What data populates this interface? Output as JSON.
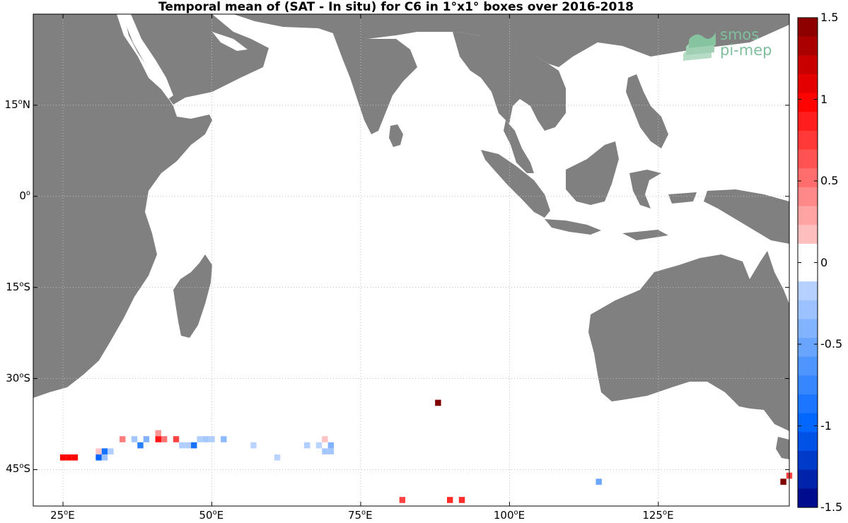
{
  "title": "Temporal mean of (SAT - In situ) for C6 in 1°x1° boxes over 2016-2018",
  "logo": {
    "line1": "smos",
    "line2": "pi-mep"
  },
  "axes": {
    "lat_ticks": [
      {
        "label": "15°N",
        "deg": "15",
        "hemi": "N",
        "lat": 15
      },
      {
        "label": "0°",
        "deg": "0",
        "hemi": "",
        "lat": 0
      },
      {
        "label": "15°S",
        "deg": "15",
        "hemi": "S",
        "lat": -15
      },
      {
        "label": "30°S",
        "deg": "30",
        "hemi": "S",
        "lat": -30
      },
      {
        "label": "45°S",
        "deg": "45",
        "hemi": "S",
        "lat": -45
      }
    ],
    "lon_ticks": [
      {
        "label": "25°E",
        "deg": "25",
        "lon": 25
      },
      {
        "label": "50°E",
        "deg": "50",
        "lon": 50
      },
      {
        "label": "75°E",
        "deg": "75",
        "lon": 75
      },
      {
        "label": "100°E",
        "deg": "100",
        "lon": 100
      },
      {
        "label": "125°E",
        "deg": "125",
        "lon": 125
      }
    ],
    "lon_range": [
      20,
      147
    ],
    "lat_range": [
      -51,
      30
    ]
  },
  "colorbar": {
    "range": [
      -1.5,
      1.5
    ],
    "ticks": [
      "1.5",
      "1",
      "0.5",
      "0",
      "-0.5",
      "-1",
      "-1.5"
    ],
    "tick_values": [
      1.5,
      1,
      0.5,
      0,
      -0.5,
      -1,
      -1.5
    ]
  },
  "colors": {
    "land": "#808080",
    "ocean": "#ffffff",
    "grid": "#bfbfbf"
  },
  "cells": [
    {
      "lon": 25,
      "lat": -43,
      "value": 1.0
    },
    {
      "lon": 26,
      "lat": -43,
      "value": 1.0
    },
    {
      "lon": 27,
      "lat": -43,
      "value": 1.0
    },
    {
      "lon": 30,
      "lat": -42,
      "value": 0.1
    },
    {
      "lon": 31,
      "lat": -42,
      "value": 0.15
    },
    {
      "lon": 31,
      "lat": -43,
      "value": -1.0
    },
    {
      "lon": 32,
      "lat": -42,
      "value": -0.9
    },
    {
      "lon": 32,
      "lat": -43,
      "value": -0.3
    },
    {
      "lon": 33,
      "lat": -42,
      "value": -0.2
    },
    {
      "lon": 35,
      "lat": -40,
      "value": 0.45
    },
    {
      "lon": 37,
      "lat": -40,
      "value": -0.25
    },
    {
      "lon": 38,
      "lat": -41,
      "value": -0.8
    },
    {
      "lon": 39,
      "lat": -40,
      "value": -0.4
    },
    {
      "lon": 41,
      "lat": -39,
      "value": 0.35
    },
    {
      "lon": 41,
      "lat": -40,
      "value": 0.9
    },
    {
      "lon": 42,
      "lat": -40,
      "value": 0.5
    },
    {
      "lon": 44,
      "lat": -40,
      "value": 0.7
    },
    {
      "lon": 45,
      "lat": -41,
      "value": -0.2
    },
    {
      "lon": 46,
      "lat": -41,
      "value": -0.2
    },
    {
      "lon": 47,
      "lat": -41,
      "value": -0.9
    },
    {
      "lon": 48,
      "lat": -40,
      "value": -0.2
    },
    {
      "lon": 49,
      "lat": -40,
      "value": -0.25
    },
    {
      "lon": 50,
      "lat": -40,
      "value": -0.2
    },
    {
      "lon": 52,
      "lat": -40,
      "value": -0.35
    },
    {
      "lon": 57,
      "lat": -41,
      "value": -0.15
    },
    {
      "lon": 61,
      "lat": -43,
      "value": -0.15
    },
    {
      "lon": 66,
      "lat": -41,
      "value": -0.2
    },
    {
      "lon": 68,
      "lat": -41,
      "value": -0.15
    },
    {
      "lon": 69,
      "lat": -40,
      "value": 0.15
    },
    {
      "lon": 69,
      "lat": -42,
      "value": -0.25
    },
    {
      "lon": 70,
      "lat": -41,
      "value": -0.4
    },
    {
      "lon": 70,
      "lat": -42,
      "value": -0.25
    },
    {
      "lon": 82,
      "lat": -50,
      "value": 0.7
    },
    {
      "lon": 88,
      "lat": -34,
      "value": 1.5
    },
    {
      "lon": 90,
      "lat": -50,
      "value": 0.8
    },
    {
      "lon": 92,
      "lat": -50,
      "value": 0.8
    },
    {
      "lon": 115,
      "lat": -47,
      "value": -0.5
    },
    {
      "lon": 118,
      "lat": -46,
      "value": -0.1
    },
    {
      "lon": 141,
      "lat": -47,
      "value": -0.1
    },
    {
      "lon": 146,
      "lat": -47,
      "value": 1.5
    },
    {
      "lon": 147,
      "lat": -46,
      "value": 0.7
    }
  ]
}
